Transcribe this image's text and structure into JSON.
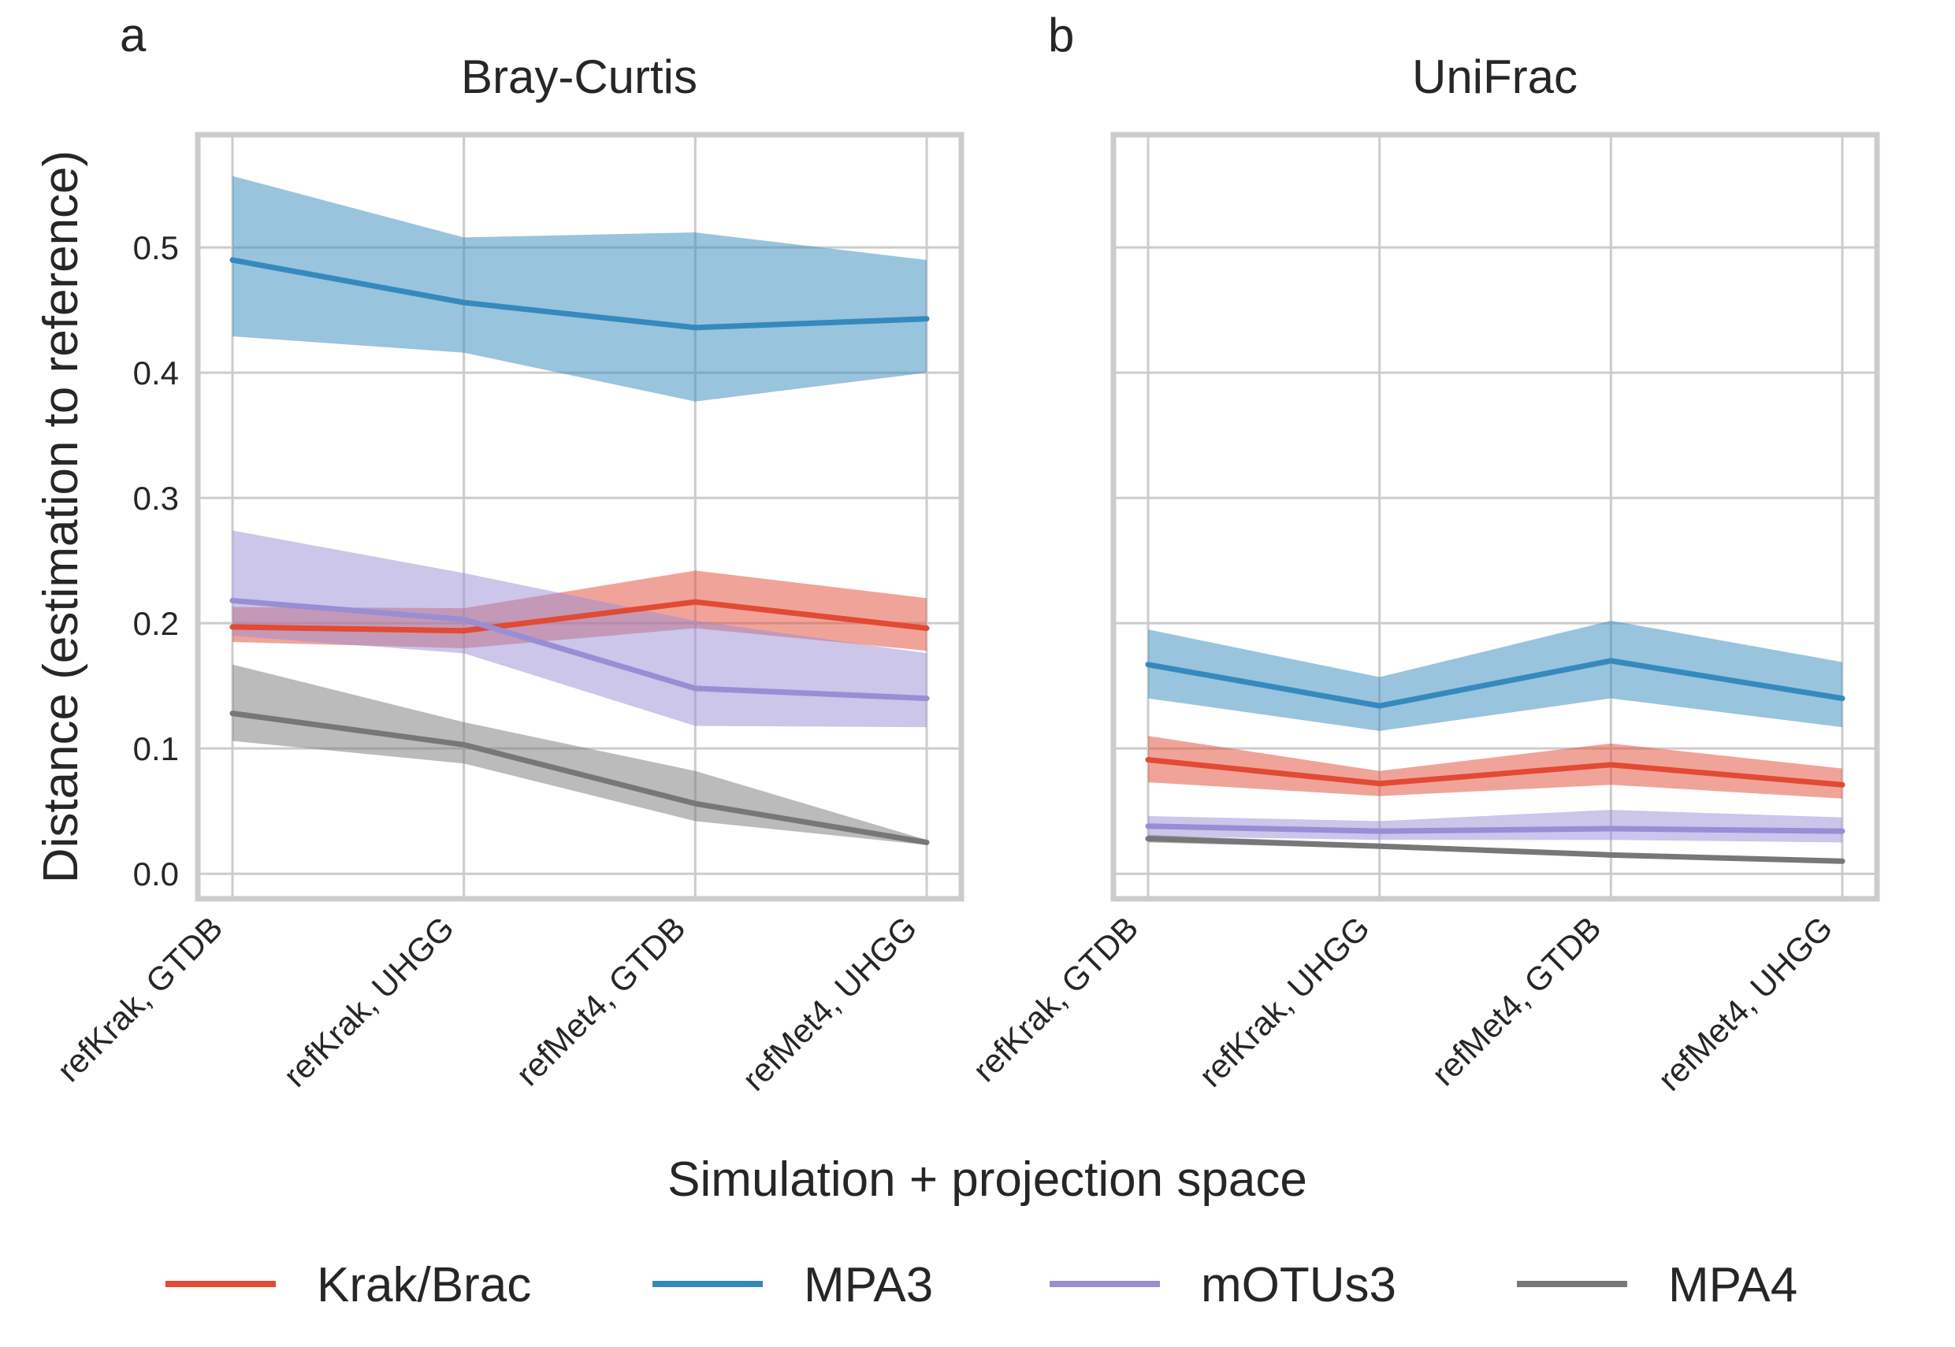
{
  "figure": {
    "xlabel": "Simulation + projection space",
    "ylabel": "Distance (estimation to reference)"
  },
  "legend": {
    "placement": "bottom",
    "items": [
      {
        "name": "Krak/Brac",
        "color": "#e24a33"
      },
      {
        "name": "MPA3",
        "color": "#348abd"
      },
      {
        "name": "mOTUs3",
        "color": "#988ed5"
      },
      {
        "name": "MPA4",
        "color": "#777777"
      }
    ]
  },
  "chart_data": [
    {
      "type": "line",
      "panel": "a",
      "title": "Bray-Curtis",
      "categories": [
        "refKrak, GTDB",
        "refKrak, UHGG",
        "refMet4, GTDB",
        "refMet4, UHGG"
      ],
      "ylim": [
        -0.02,
        0.59
      ],
      "yticks": [
        0.0,
        0.1,
        0.2,
        0.3,
        0.4,
        0.5
      ],
      "ytick_labels": [
        "0.0",
        "0.1",
        "0.2",
        "0.3",
        "0.4",
        "0.5"
      ],
      "grid": true,
      "series": [
        {
          "name": "Krak/Brac",
          "color": "#e24a33",
          "values": [
            0.197,
            0.194,
            0.217,
            0.196
          ],
          "lower": [
            0.185,
            0.18,
            0.196,
            0.178
          ],
          "upper": [
            0.213,
            0.212,
            0.242,
            0.22
          ]
        },
        {
          "name": "MPA3",
          "color": "#348abd",
          "values": [
            0.49,
            0.456,
            0.436,
            0.443
          ],
          "lower": [
            0.429,
            0.416,
            0.377,
            0.4
          ],
          "upper": [
            0.557,
            0.508,
            0.512,
            0.49
          ]
        },
        {
          "name": "mOTUs3",
          "color": "#988ed5",
          "values": [
            0.218,
            0.203,
            0.148,
            0.14
          ],
          "lower": [
            0.19,
            0.176,
            0.118,
            0.117
          ],
          "upper": [
            0.274,
            0.24,
            0.202,
            0.176
          ]
        },
        {
          "name": "MPA4",
          "color": "#777777",
          "values": [
            0.128,
            0.103,
            0.056,
            0.025
          ],
          "lower": [
            0.106,
            0.088,
            0.042,
            0.023
          ],
          "upper": [
            0.167,
            0.121,
            0.082,
            0.027
          ]
        }
      ]
    },
    {
      "type": "line",
      "panel": "b",
      "title": "UniFrac",
      "categories": [
        "refKrak, GTDB",
        "refKrak, UHGG",
        "refMet4, GTDB",
        "refMet4, UHGG"
      ],
      "ylim": [
        -0.02,
        0.59
      ],
      "yticks": [
        0.0,
        0.1,
        0.2,
        0.3,
        0.4,
        0.5
      ],
      "grid": true,
      "series": [
        {
          "name": "Krak/Brac",
          "color": "#e24a33",
          "values": [
            0.091,
            0.072,
            0.087,
            0.071
          ],
          "lower": [
            0.073,
            0.062,
            0.071,
            0.06
          ],
          "upper": [
            0.11,
            0.082,
            0.104,
            0.084
          ]
        },
        {
          "name": "MPA3",
          "color": "#348abd",
          "values": [
            0.167,
            0.134,
            0.17,
            0.14
          ],
          "lower": [
            0.14,
            0.114,
            0.14,
            0.117
          ],
          "upper": [
            0.195,
            0.157,
            0.202,
            0.169
          ]
        },
        {
          "name": "mOTUs3",
          "color": "#988ed5",
          "values": [
            0.038,
            0.034,
            0.036,
            0.034
          ],
          "lower": [
            0.03,
            0.027,
            0.027,
            0.025
          ],
          "upper": [
            0.046,
            0.042,
            0.051,
            0.045
          ]
        },
        {
          "name": "MPA4",
          "color": "#777777",
          "values": [
            0.028,
            0.022,
            0.015,
            0.01
          ],
          "lower": [
            0.025,
            0.02,
            0.013,
            0.009
          ],
          "upper": [
            0.031,
            0.024,
            0.017,
            0.011
          ]
        }
      ]
    }
  ]
}
